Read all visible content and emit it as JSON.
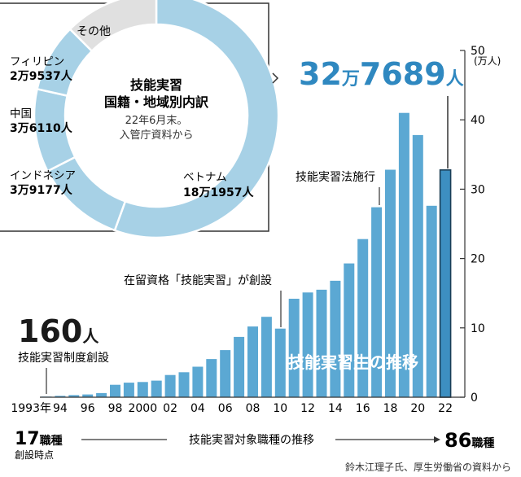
{
  "chart_data": [
    {
      "type": "bar",
      "title": "技能実習生の推移",
      "x": [
        1993,
        1994,
        1995,
        1996,
        1997,
        1998,
        1999,
        2000,
        2001,
        2002,
        2003,
        2004,
        2005,
        2006,
        2007,
        2008,
        2009,
        2010,
        2011,
        2012,
        2013,
        2014,
        2015,
        2016,
        2017,
        2018,
        2019,
        2020,
        2021,
        2022
      ],
      "values": [
        0.016,
        0.2,
        0.3,
        0.4,
        0.6,
        1.8,
        2.1,
        2.2,
        2.4,
        3.2,
        3.6,
        4.4,
        5.5,
        6.8,
        8.7,
        10.2,
        11.6,
        9.9,
        14.2,
        15.1,
        15.5,
        16.8,
        19.3,
        22.8,
        27.4,
        32.8,
        41.0,
        37.8,
        27.6,
        32.7689
      ],
      "ylabel": "(万人)",
      "ylim": [
        0,
        50
      ],
      "yticks": [
        "0",
        "10",
        "20",
        "30",
        "40",
        "50"
      ],
      "xticks": [
        "1993年",
        "94",
        "96",
        "98",
        "2000",
        "02",
        "04",
        "06",
        "08",
        "10",
        "12",
        "14",
        "16",
        "18",
        "20",
        "22"
      ],
      "bar_color": "#5ba8d3",
      "highlight_color": "#3d8fc1"
    },
    {
      "type": "pie",
      "title": "技能実習",
      "subtitle": "国籍・地域別内訳",
      "note_1": "22年6月末。",
      "note_2": "入管庁資料から",
      "categories": [
        "ベトナム",
        "インドネシア",
        "中国",
        "フィリピン",
        "その他"
      ],
      "values": [
        181957,
        39177,
        36110,
        29537,
        40908
      ],
      "labels": [
        "18万1957人",
        "3万9177人",
        "3万6110人",
        "2万9537人",
        ""
      ],
      "colors": [
        "#a7d1e6",
        "#a7d1e6",
        "#a7d1e6",
        "#a7d1e6",
        "#e0e0e0"
      ]
    }
  ],
  "annotations": {
    "total_num1": "32",
    "total_unit1": "万",
    "total_num2": "7689",
    "total_unit2": "人",
    "start_num": "160",
    "start_unit": "人",
    "start_label": "技能実習制度創設",
    "law_label": "技能実習法施行",
    "status_label": "在留資格「技能実習」が創設",
    "occ_start_num": "17",
    "occ_start_unit": "職種",
    "occ_start_note": "創設時点",
    "occ_trend_label": "技能実習対象職種の推移",
    "occ_end_num": "86",
    "occ_end_unit": "職種",
    "source": "鈴木江理子氏、厚生労働省の資料から"
  }
}
